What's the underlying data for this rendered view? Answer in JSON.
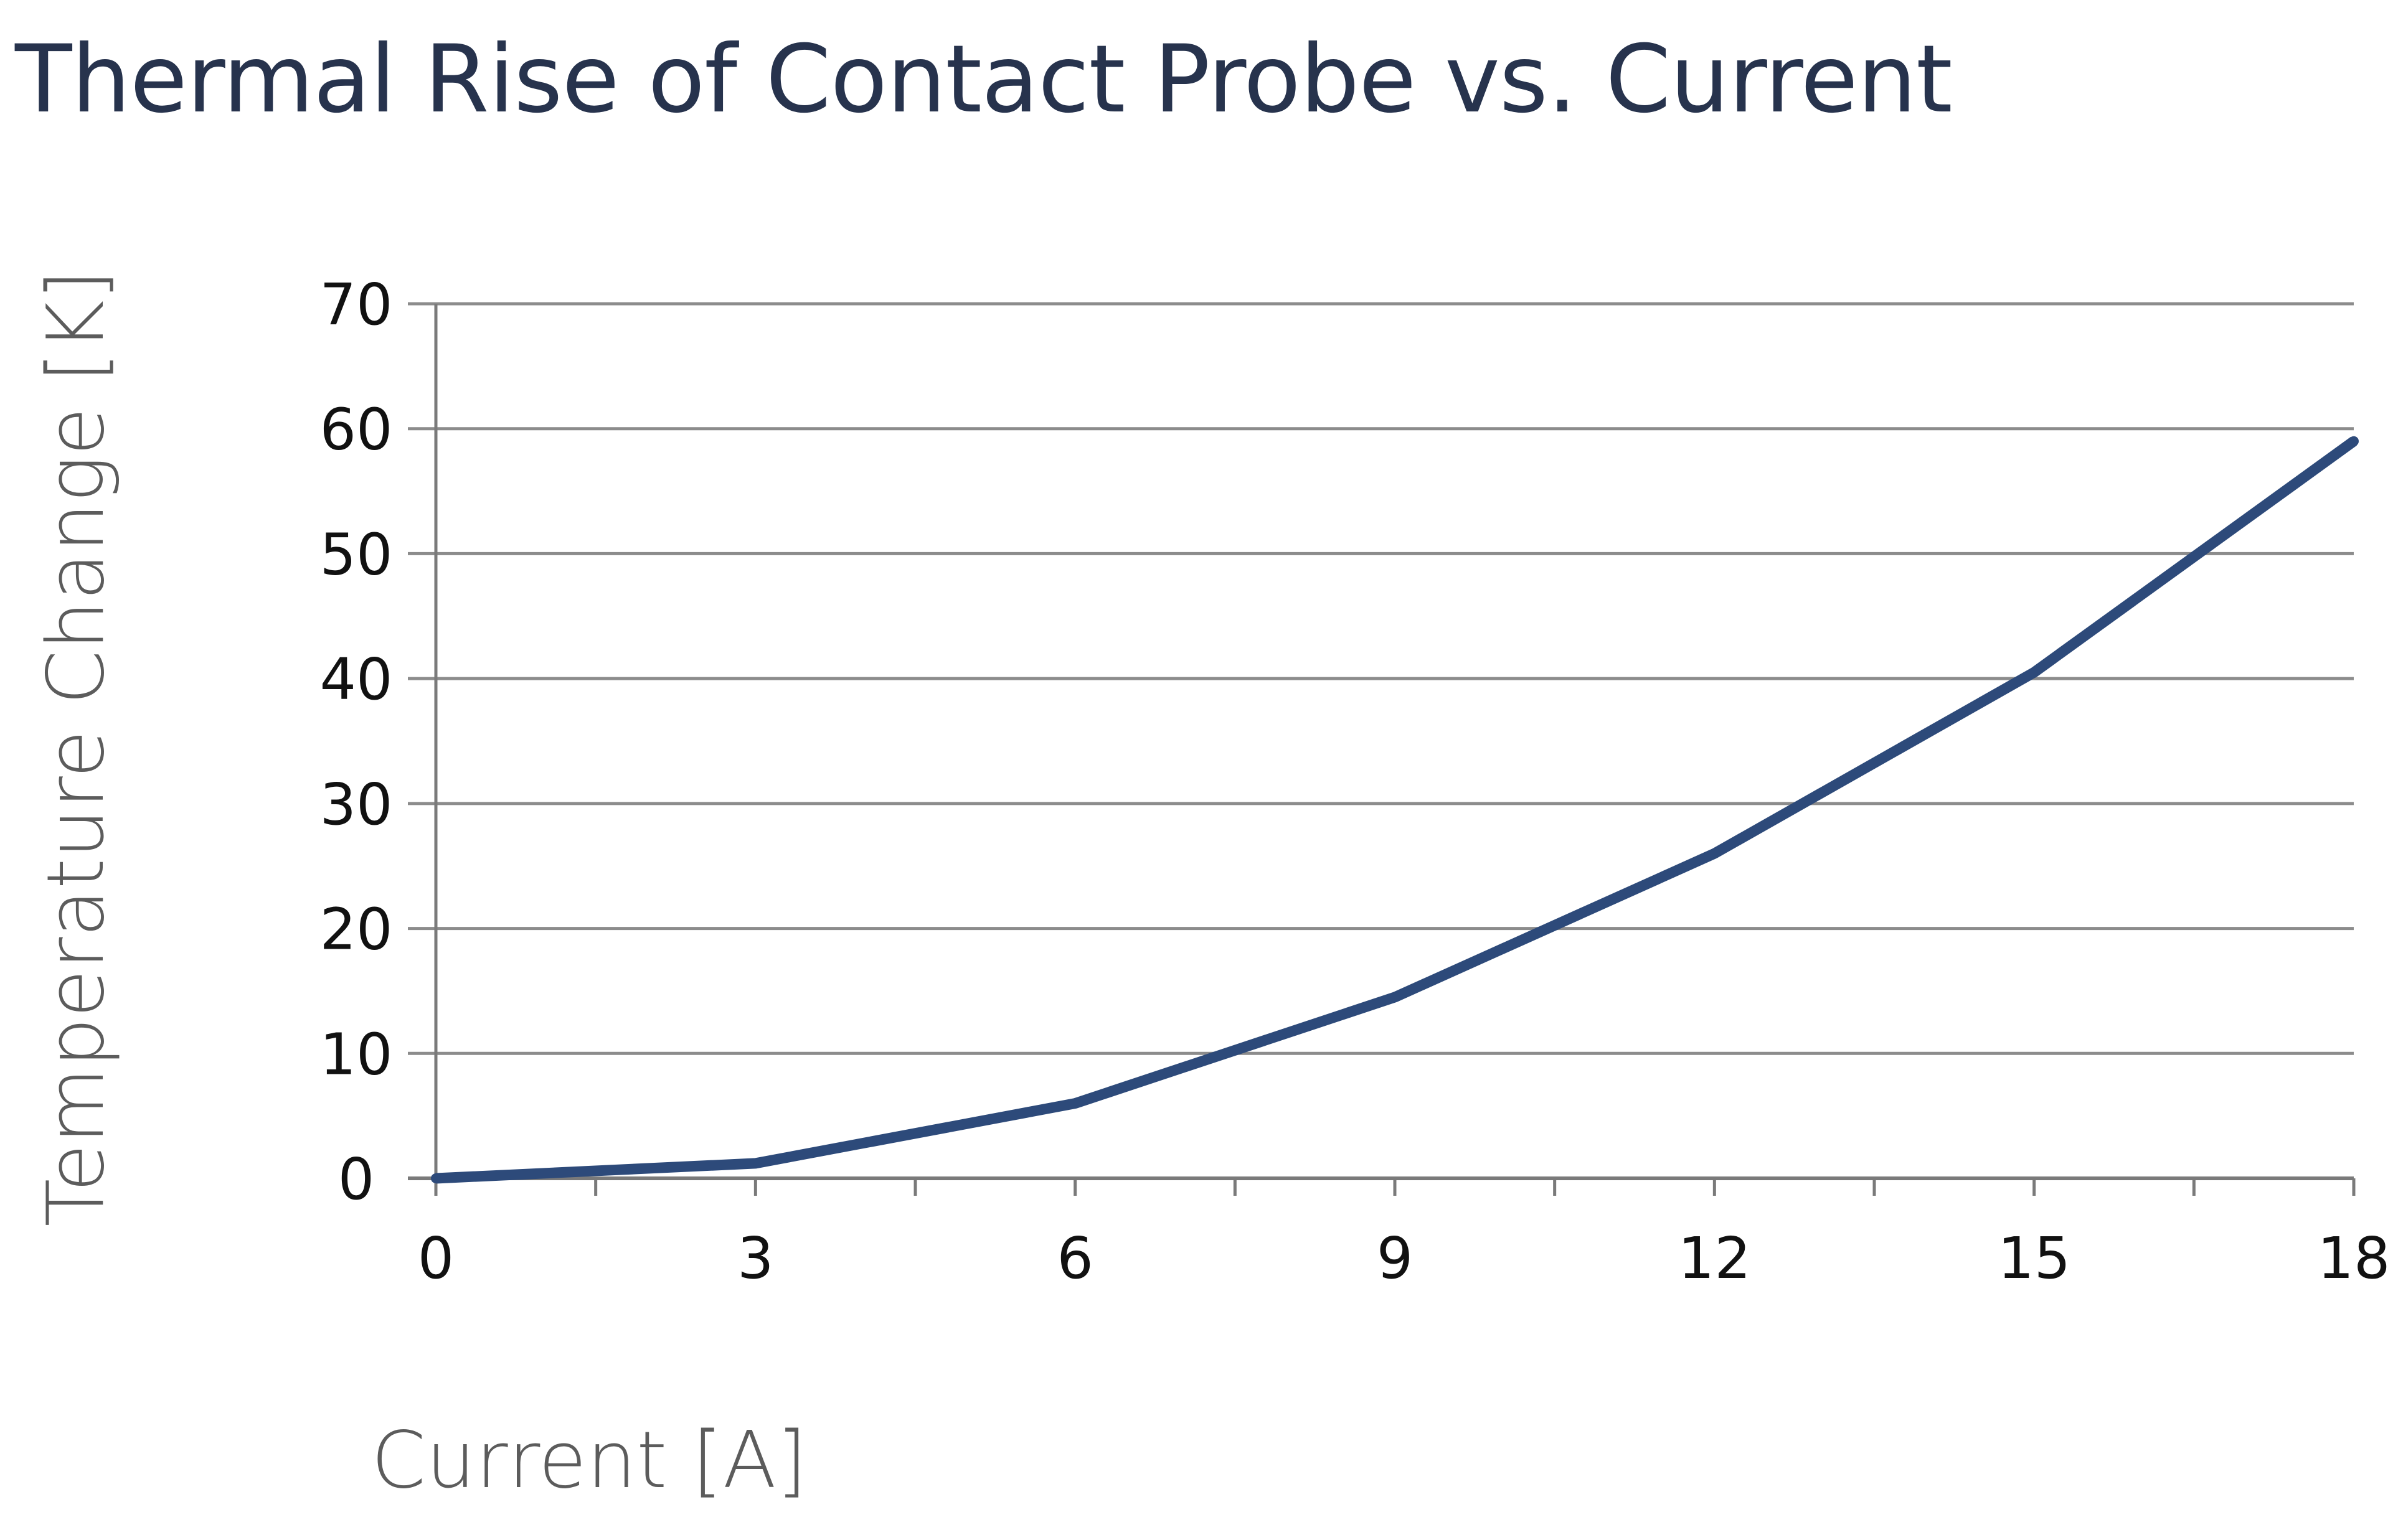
{
  "colors": {
    "title": "#27334d",
    "axis_title": "#5c5c5c",
    "tick_label": "#111111",
    "gridline": "#8c8c8c",
    "axis": "#7a7a7a",
    "series": "#2d4a7a"
  },
  "chart_data": {
    "type": "line",
    "title": "Thermal Rise of Contact Probe vs. Current",
    "xlabel": "Current [A]",
    "ylabel": "Temperature Change [K]",
    "xlim": [
      0,
      18
    ],
    "ylim": [
      0,
      70
    ],
    "x_ticks": [
      0,
      3,
      6,
      9,
      12,
      15,
      18
    ],
    "x_tick_labels": [
      "0",
      "3",
      "6",
      "9",
      "12",
      "15",
      "18"
    ],
    "y_ticks": [
      0,
      10,
      20,
      30,
      40,
      50,
      60,
      70
    ],
    "y_tick_labels": [
      "0",
      "10",
      "20",
      "30",
      "40",
      "50",
      "60",
      "70"
    ],
    "x_minor_step": 1.5,
    "grid": true,
    "series": [
      {
        "x": [
          0,
          3,
          6,
          9,
          12,
          15,
          18
        ],
        "y": [
          0,
          1.2,
          6,
          14.5,
          26,
          40.5,
          59
        ]
      }
    ]
  }
}
